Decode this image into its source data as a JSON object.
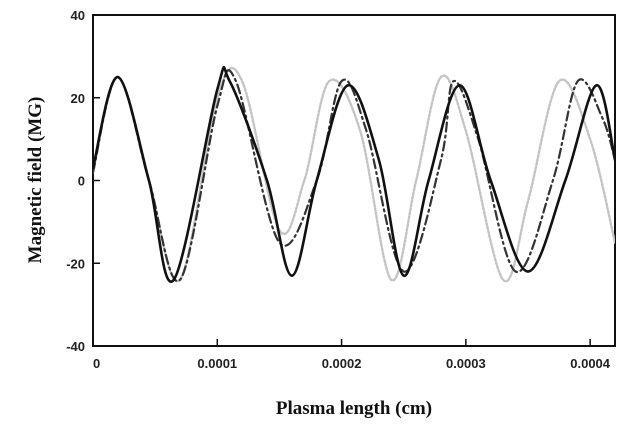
{
  "chart_data": {
    "type": "line",
    "title": "",
    "xlabel": "Plasma length (cm)",
    "ylabel": "Magnetic  field (MG)",
    "xlim": [
      0,
      0.00042
    ],
    "ylim": [
      -40,
      40
    ],
    "x_ticks": [
      {
        "value": 0,
        "label": "0"
      },
      {
        "value": 0.0001,
        "label": "0.0001"
      },
      {
        "value": 0.0002,
        "label": "0.0002"
      },
      {
        "value": 0.0003,
        "label": "0.0003"
      },
      {
        "value": 0.0004,
        "label": "0.0004"
      }
    ],
    "y_ticks": [
      {
        "value": -40,
        "label": "-40"
      },
      {
        "value": -20,
        "label": "-20"
      },
      {
        "value": 0,
        "label": "0"
      },
      {
        "value": 20,
        "label": "20"
      },
      {
        "value": 40,
        "label": "40"
      }
    ],
    "grid": false,
    "legend": "none",
    "series": [
      {
        "style": "dotted",
        "color": "#c4c4c4",
        "x": [
          0,
          2e-05,
          4.5e-05,
          7e-05,
          0.0001,
          0.00012,
          0.00015,
          0.00017,
          0.00019,
          0.000215,
          0.00024,
          0.00026,
          0.00028,
          0.0003,
          0.00033,
          0.00035,
          0.000375,
          0.0004,
          0.00042
        ],
        "y": [
          2,
          25,
          0,
          -24,
          20,
          24,
          -12,
          0,
          24,
          12,
          -24,
          0,
          25,
          12,
          -24,
          -5,
          24,
          10,
          -15
        ]
      },
      {
        "style": "dash-dot",
        "color": "#333333",
        "x": [
          0,
          2e-05,
          4.5e-05,
          7e-05,
          0.0001,
          0.000115,
          0.00015,
          0.00018,
          0.0002,
          0.00022,
          0.00025,
          0.00028,
          0.00029,
          0.00031,
          0.00034,
          0.00037,
          0.00039,
          0.00041,
          0.00042
        ],
        "y": [
          2,
          25,
          0,
          -24,
          18,
          24,
          -15,
          0,
          24,
          12,
          -22,
          5,
          24,
          10,
          -22,
          0,
          24,
          15,
          5
        ]
      },
      {
        "style": "solid",
        "color": "#111111",
        "x": [
          0,
          2e-05,
          4.5e-05,
          6.5e-05,
          0.0001,
          0.00011,
          0.00014,
          0.00016,
          0.00018,
          0.000205,
          0.00023,
          0.00025,
          0.00027,
          0.000295,
          0.00032,
          0.00035,
          0.00038,
          0.000405,
          0.00042
        ],
        "y": [
          3,
          25,
          0,
          -24,
          22,
          24,
          0,
          -23,
          0,
          23,
          5,
          -23,
          0,
          23,
          0,
          -22,
          0,
          23,
          5
        ]
      }
    ]
  }
}
